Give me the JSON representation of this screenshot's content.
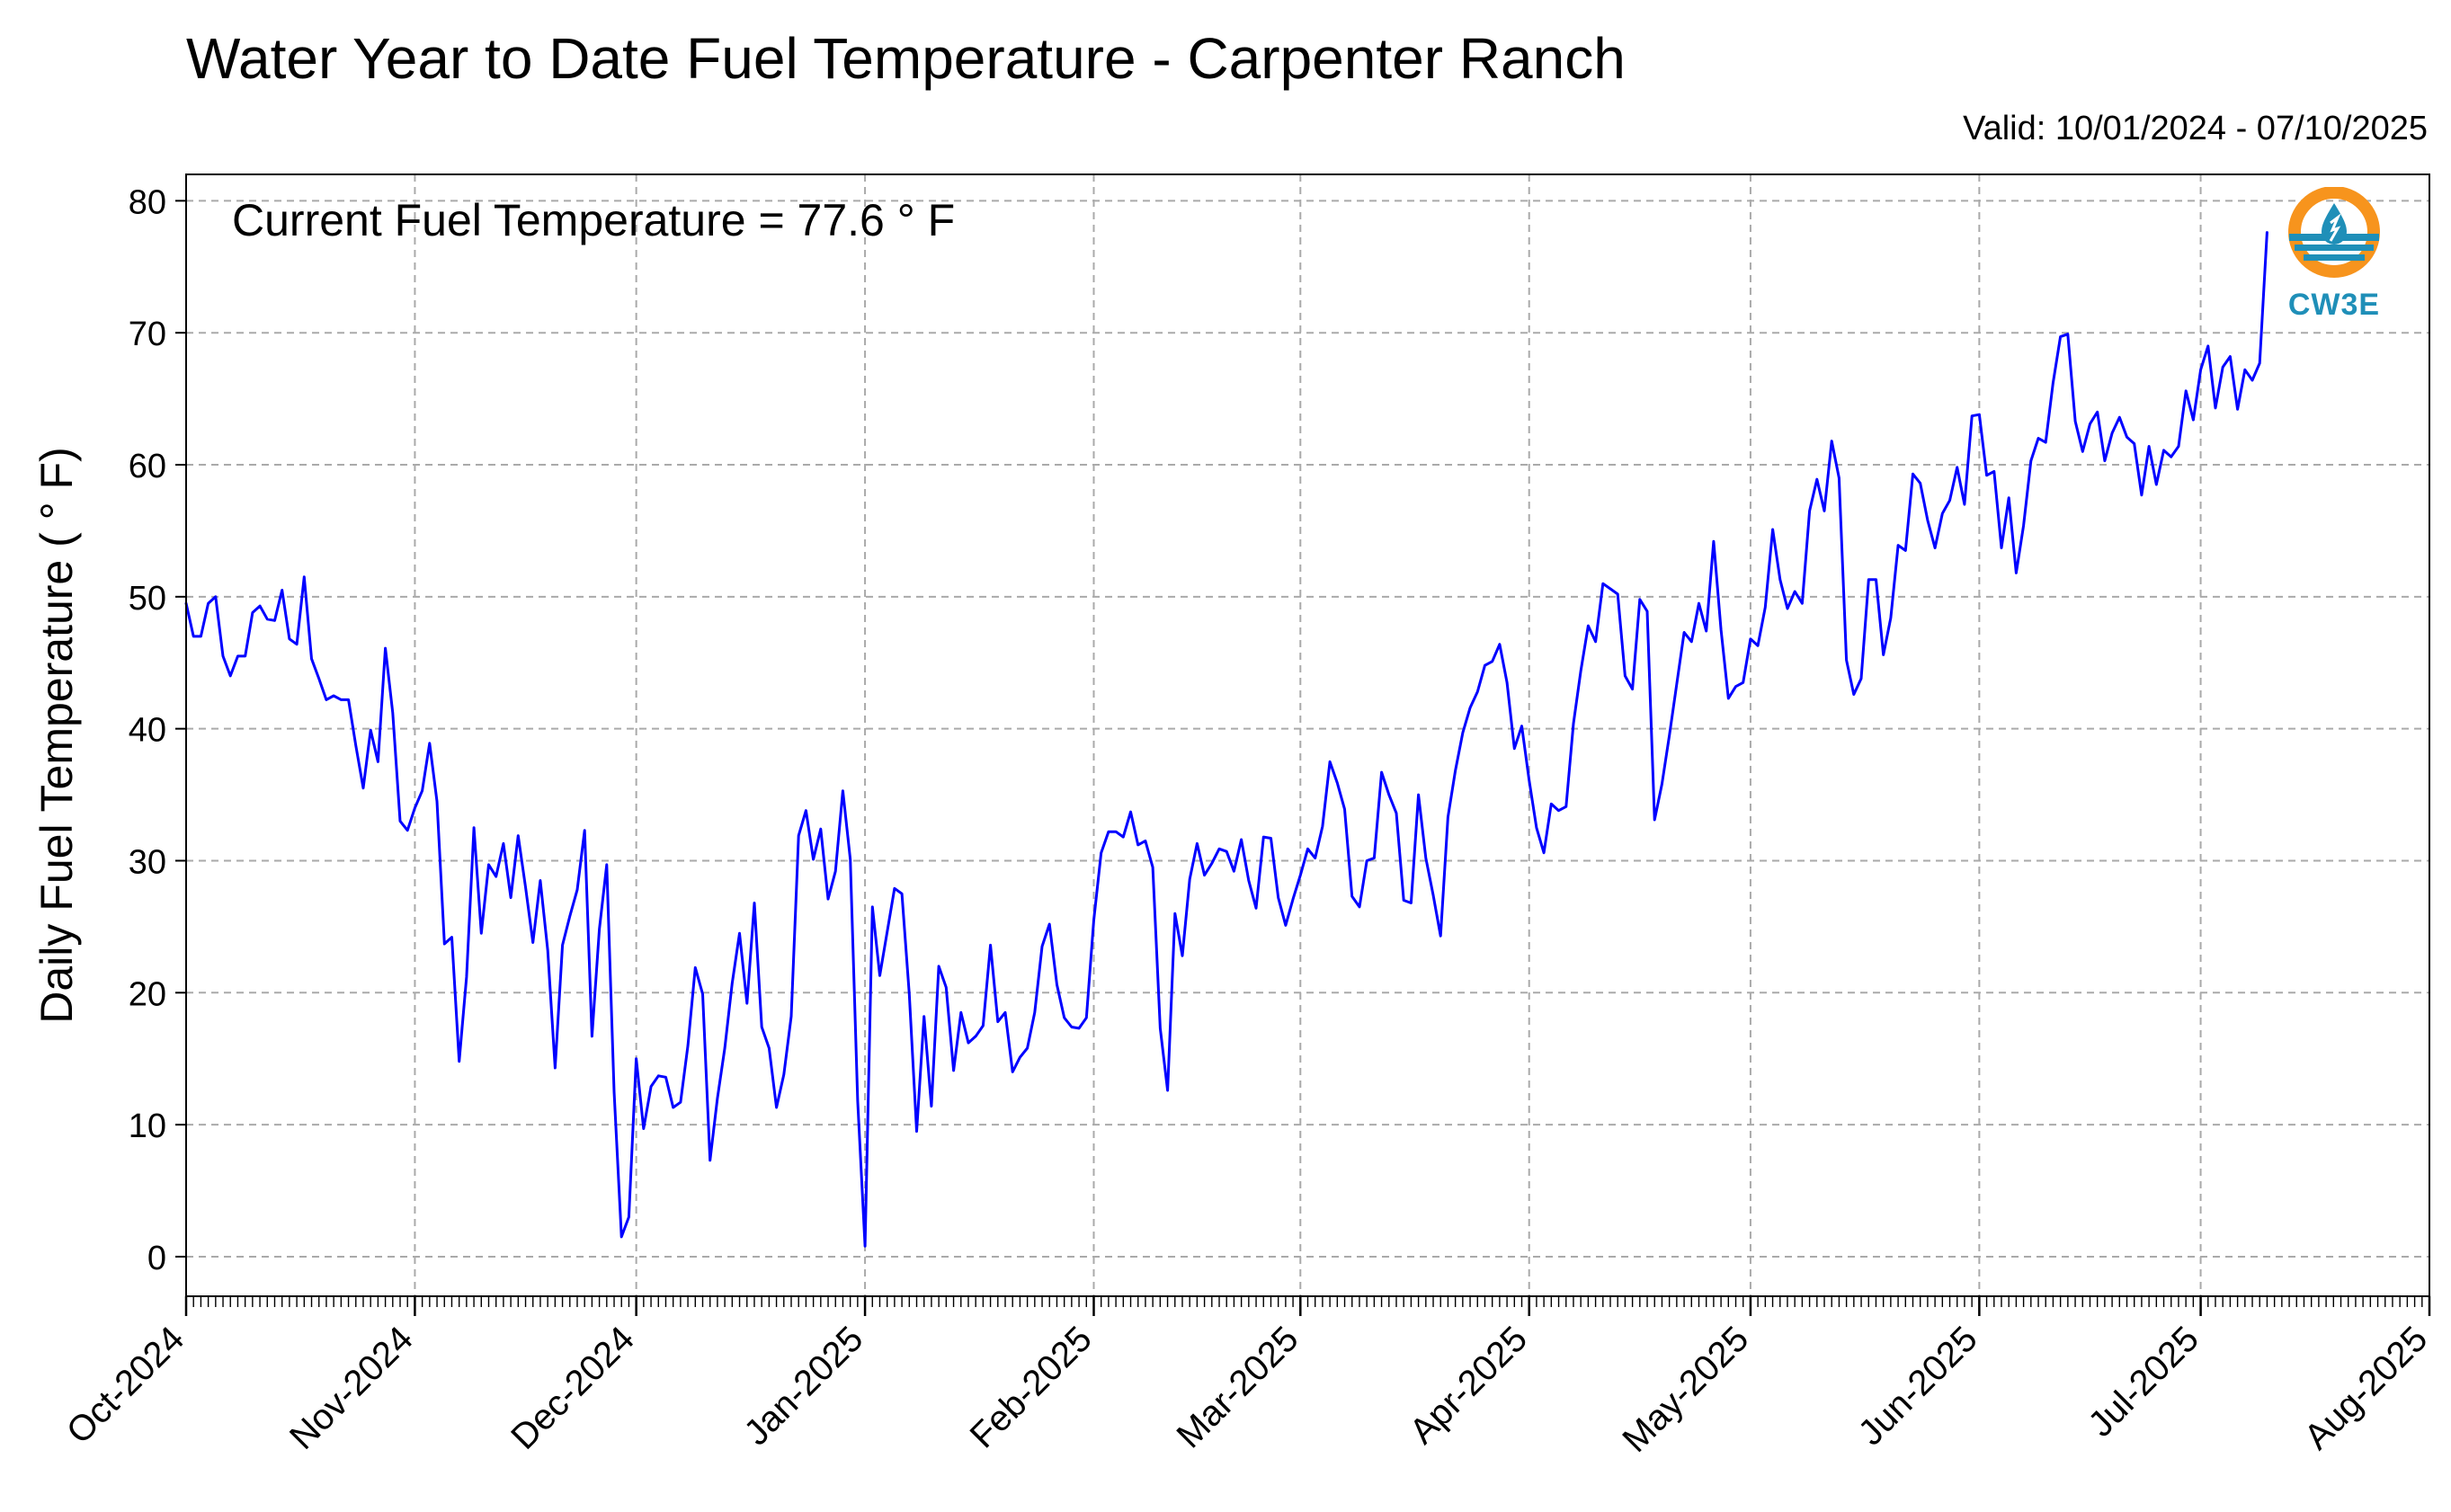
{
  "header": {
    "title": "Water Year to Date Fuel Temperature - Carpenter Ranch",
    "valid": "Valid: 10/01/2024 - 07/10/2025"
  },
  "logo": {
    "text": "CW3E"
  },
  "colors": {
    "line": "#0000ff",
    "grid": "#aaaaaa",
    "logo_orange": "#f7941d",
    "logo_blue": "#1f8fb8"
  },
  "chart_data": {
    "type": "line",
    "ylabel": "Daily Fuel Temperature ($^\\circ$F)",
    "ylabel_display": "Daily Fuel Temperature ( ° F)",
    "annotation": "Current Fuel Temperature = 77.6  ° F",
    "x_start": "2024-10-01",
    "xlim": [
      "2024-10-01",
      "2025-08-01"
    ],
    "ylim": [
      -3,
      82
    ],
    "yticks": [
      0,
      10,
      20,
      30,
      40,
      50,
      60,
      70,
      80
    ],
    "xticks": [
      {
        "date": "2024-10-01",
        "label": "Oct-2024"
      },
      {
        "date": "2024-11-01",
        "label": "Nov-2024"
      },
      {
        "date": "2024-12-01",
        "label": "Dec-2024"
      },
      {
        "date": "2025-01-01",
        "label": "Jan-2025"
      },
      {
        "date": "2025-02-01",
        "label": "Feb-2025"
      },
      {
        "date": "2025-03-01",
        "label": "Mar-2025"
      },
      {
        "date": "2025-04-01",
        "label": "Apr-2025"
      },
      {
        "date": "2025-05-01",
        "label": "May-2025"
      },
      {
        "date": "2025-06-01",
        "label": "Jun-2025"
      },
      {
        "date": "2025-07-01",
        "label": "Jul-2025"
      },
      {
        "date": "2025-08-01",
        "label": "Aug-2025"
      }
    ],
    "grid": true,
    "series": [
      {
        "values": [
          49.5,
          47,
          47,
          49.5,
          50,
          45.5,
          44,
          45.5,
          45.5,
          48.8,
          49.3,
          48.3,
          48.2,
          50.5,
          46.8,
          46.4,
          51.5,
          45.3,
          43.8,
          42.2,
          42.5,
          42.2,
          42.2,
          38.7,
          35.5,
          39.9,
          37.5,
          46.1,
          41.2,
          33,
          32.3,
          34,
          35.3,
          38.9,
          34.5,
          23.7,
          24.2,
          14.8,
          21.2,
          32.5,
          24.5,
          29.7,
          28.8,
          31.3,
          27.2,
          31.9,
          28,
          23.8,
          28.5,
          23.2,
          14.3,
          23.6,
          25.8,
          27.8,
          32.3,
          16.7,
          24.8,
          29.7,
          12.5,
          1.5,
          3,
          15,
          9.7,
          12.9,
          13.7,
          13.6,
          11.3,
          11.7,
          16,
          21.9,
          19.9,
          7.3,
          12,
          15.8,
          20.7,
          24.5,
          19.2,
          26.8,
          17.4,
          15.8,
          11.3,
          13.8,
          18.2,
          31.9,
          33.8,
          30.1,
          32.4,
          27.1,
          29.2,
          35.3,
          30.1,
          11.8,
          0.8,
          26.5,
          21.3,
          24.6,
          27.9,
          27.5,
          19.9,
          9.5,
          18.2,
          11.4,
          22,
          20.4,
          14.1,
          18.5,
          16.2,
          16.7,
          17.5,
          23.6,
          17.8,
          18.5,
          14,
          15.1,
          15.8,
          18.5,
          23.5,
          25.2,
          20.6,
          18.1,
          17.4,
          17.3,
          18.1,
          25.5,
          30.6,
          32.2,
          32.2,
          31.8,
          33.7,
          31.2,
          31.5,
          29.5,
          17.3,
          12.6,
          26,
          22.8,
          28.6,
          31.3,
          28.9,
          29.8,
          30.9,
          30.7,
          29.2,
          31.6,
          28.5,
          26.4,
          31.8,
          31.7,
          27.2,
          25.1,
          27.1,
          28.9,
          30.9,
          30.2,
          32.6,
          37.5,
          35.9,
          33.9,
          27.3,
          26.5,
          30,
          30.2,
          36.7,
          35,
          33.6,
          27,
          26.8,
          35,
          30.2,
          27.4,
          24.3,
          33.3,
          36.8,
          39.7,
          41.6,
          42.8,
          44.8,
          45.1,
          46.4,
          43.5,
          38.5,
          40.2,
          36.1,
          32.5,
          30.6,
          34.3,
          33.8,
          34.1,
          40.4,
          44.4,
          47.8,
          46.6,
          51,
          50.6,
          50.2,
          44,
          43,
          49.8,
          48.9,
          33.1,
          35.8,
          39.5,
          43.4,
          47.3,
          46.6,
          49.5,
          47.4,
          54.2,
          47.5,
          42.3,
          43.2,
          43.5,
          46.8,
          46.3,
          49.2,
          55.1,
          51.3,
          49.1,
          50.4,
          49.5,
          56.5,
          58.9,
          56.5,
          61.8,
          59,
          45.2,
          42.6,
          43.8,
          51.3,
          51.3,
          45.6,
          48.4,
          53.9,
          53.5,
          59.3,
          58.6,
          55.8,
          53.7,
          56.3,
          57.3,
          59.8,
          57,
          63.7,
          63.8,
          59.2,
          59.5,
          53.7,
          57.5,
          51.8,
          55.4,
          60.3,
          62,
          61.7,
          66.2,
          69.7,
          69.9,
          63.3,
          61,
          63.1,
          64,
          60.3,
          62.4,
          63.6,
          62.1,
          61.6,
          57.7,
          61.4,
          58.5,
          61.1,
          60.6,
          61.4,
          65.6,
          63.4,
          67.2,
          69,
          64.3,
          67.4,
          68.2,
          64.2,
          67.2,
          66.4,
          67.7,
          77.6
        ]
      }
    ]
  }
}
